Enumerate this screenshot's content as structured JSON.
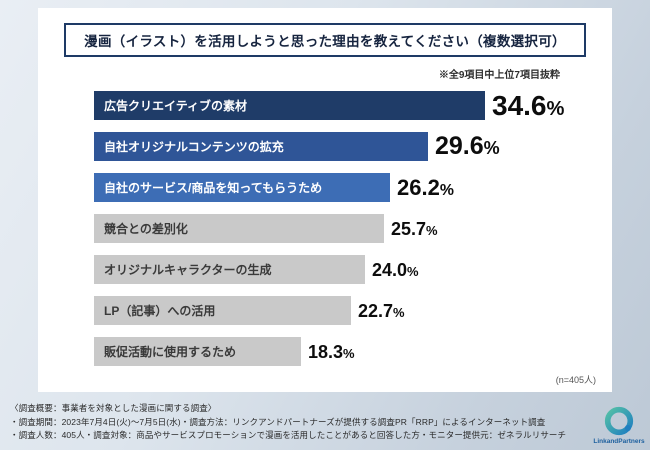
{
  "title": "漫画（イラスト）を活用しようと思った理由を教えてください（複数選択可）",
  "note": "※全9項目中上位7項目抜粋",
  "sample": "(n=405人)",
  "chart_data": {
    "type": "bar",
    "orientation": "horizontal",
    "title": "漫画（イラスト）を活用しようと思った理由を教えてください（複数選択可）",
    "categories": [
      "広告クリエイティブの素材",
      "自社オリジナルコンテンツの拡充",
      "自社のサービス/商品を知ってもらうため",
      "競合との差別化",
      "オリジナルキャラクターの生成",
      "LP（記事）への活用",
      "販促活動に使用するため"
    ],
    "values": [
      34.6,
      29.6,
      26.2,
      25.7,
      24.0,
      22.7,
      18.3
    ],
    "value_labels": [
      "34.6%",
      "29.6%",
      "26.2%",
      "25.7%",
      "24.0%",
      "22.7%",
      "18.3%"
    ],
    "bar_colors": [
      "#1f3c68",
      "#2f5597",
      "#3d6db5",
      "#c9c9c9",
      "#c9c9c9",
      "#c9c9c9",
      "#c9c9c9"
    ],
    "label_colors": [
      "#ffffff",
      "#ffffff",
      "#ffffff",
      "#3a3a3a",
      "#3a3a3a",
      "#3a3a3a",
      "#3a3a3a"
    ],
    "xlim": [
      0,
      40
    ],
    "legend": "none",
    "grid": false
  },
  "footer": {
    "line1": "〈調査概要：事業者を対象とした漫画に関する調査〉",
    "line2": "・調査期間：2023年7月4日(火)〜7月5日(水)・調査方法：リンクアンドパートナーズが提供する調査PR「RRP」によるインターネット調査",
    "line3": "・調査人数：405人・調査対象：商品やサービスプロモーションで漫画を活用したことがあると回答した方・モニター提供元：ゼネラルリサーチ"
  },
  "logo": {
    "name": "LinkandPartners"
  }
}
